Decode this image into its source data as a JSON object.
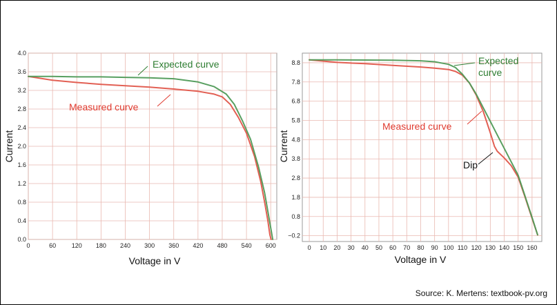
{
  "colors": {
    "expected": "#4f9a57",
    "measured": "#e0564a",
    "grid": "#e9b8b0",
    "plot_bg": "#ffffff",
    "plot_border": "#999999",
    "annotation_green": "#2e7d32",
    "annotation_red": "#e03c31",
    "annotation_black": "#111111"
  },
  "source": "Source: K. Mertens: textbook-pv.org",
  "chart_data": [
    {
      "type": "line",
      "xlabel": "Voltage in V",
      "ylabel": "Current",
      "xlim": [
        0,
        615
      ],
      "ylim": [
        0,
        4.0
      ],
      "xticks": [
        0,
        60,
        120,
        180,
        240,
        300,
        360,
        420,
        480,
        540,
        600
      ],
      "yticks": [
        0.0,
        0.4,
        0.8,
        1.2,
        1.6,
        2.0,
        2.4,
        2.8,
        3.2,
        3.6,
        4.0
      ],
      "ytick_labels": [
        "0.0",
        "0.4",
        "0.8",
        "1.2",
        "1.6",
        "2.0",
        "2.4",
        "2.8",
        "3.2",
        "3.6",
        "4.0"
      ],
      "grid": true,
      "series": [
        {
          "key": "expected",
          "x": [
            0,
            60,
            120,
            180,
            240,
            300,
            360,
            420,
            460,
            490,
            510,
            530,
            550,
            570,
            585,
            595,
            602,
            605
          ],
          "y": [
            3.5,
            3.5,
            3.49,
            3.49,
            3.48,
            3.47,
            3.45,
            3.38,
            3.28,
            3.12,
            2.9,
            2.55,
            2.15,
            1.55,
            1.0,
            0.5,
            0.15,
            0.0
          ]
        },
        {
          "key": "measured",
          "x": [
            0,
            60,
            120,
            180,
            240,
            300,
            360,
            420,
            460,
            480,
            500,
            520,
            540,
            560,
            575,
            585,
            593,
            598,
            601
          ],
          "y": [
            3.5,
            3.42,
            3.37,
            3.33,
            3.3,
            3.27,
            3.23,
            3.18,
            3.12,
            3.06,
            2.9,
            2.62,
            2.28,
            1.78,
            1.25,
            0.8,
            0.4,
            0.1,
            0.0
          ]
        }
      ],
      "annotations": [
        {
          "text": "Expected curve",
          "color_key": "annotation_green"
        },
        {
          "text": "Measured curve",
          "color_key": "annotation_red"
        }
      ]
    },
    {
      "type": "line",
      "xlabel": "Voltage in V",
      "ylabel": "Current",
      "xlim": [
        -5,
        167
      ],
      "ylim": [
        -0.5,
        9.3
      ],
      "xticks": [
        0,
        10,
        20,
        30,
        40,
        50,
        60,
        70,
        80,
        90,
        100,
        110,
        120,
        130,
        140,
        150,
        160
      ],
      "yticks": [
        -0.2,
        0.8,
        1.8,
        2.8,
        3.8,
        4.8,
        5.8,
        6.8,
        7.8,
        8.8
      ],
      "ytick_labels": [
        "−0.2",
        "0.8",
        "1.8",
        "2.8",
        "3.8",
        "4.8",
        "5.8",
        "6.8",
        "7.8",
        "8.8"
      ],
      "grid": true,
      "series": [
        {
          "key": "expected",
          "x": [
            0,
            20,
            40,
            60,
            80,
            90,
            100,
            105,
            110,
            115,
            120,
            125,
            130,
            135,
            140,
            145,
            150,
            155,
            160,
            164
          ],
          "y": [
            8.95,
            8.95,
            8.94,
            8.93,
            8.9,
            8.85,
            8.72,
            8.55,
            8.2,
            7.75,
            7.15,
            6.45,
            5.75,
            5.05,
            4.35,
            3.65,
            2.95,
            1.85,
            0.75,
            -0.15
          ]
        },
        {
          "key": "measured",
          "x": [
            0,
            20,
            40,
            60,
            80,
            90,
            100,
            105,
            110,
            115,
            120,
            125,
            130,
            133,
            135,
            140,
            145,
            150,
            155,
            160,
            164
          ],
          "y": [
            8.95,
            8.82,
            8.75,
            8.66,
            8.58,
            8.52,
            8.45,
            8.35,
            8.15,
            7.75,
            7.1,
            6.25,
            5.15,
            4.45,
            4.2,
            3.85,
            3.45,
            2.85,
            1.8,
            0.7,
            -0.15
          ]
        }
      ],
      "annotations": [
        {
          "text": "Expected",
          "color_key": "annotation_green"
        },
        {
          "text": "curve",
          "color_key": "annotation_green"
        },
        {
          "text": "Measured curve",
          "color_key": "annotation_red"
        },
        {
          "text": "Dip",
          "color_key": "annotation_black"
        }
      ]
    }
  ]
}
